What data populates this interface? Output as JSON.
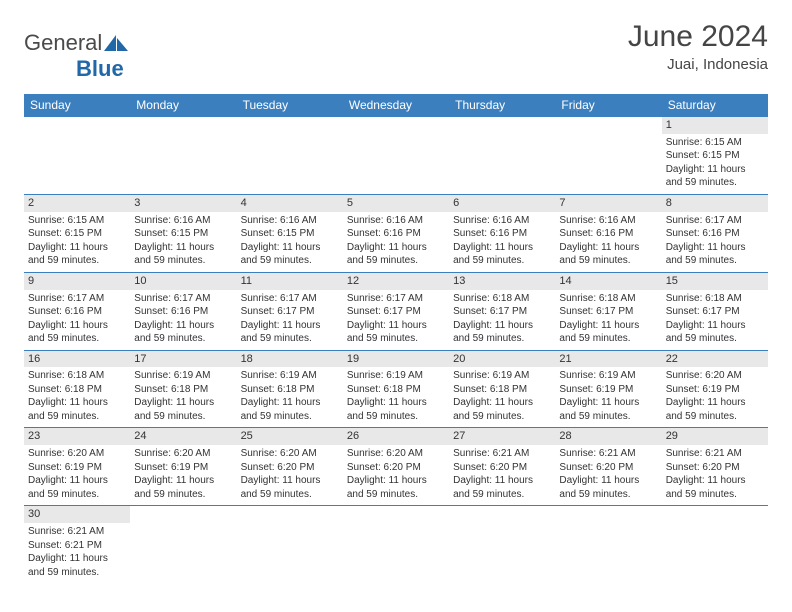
{
  "logo": {
    "text1": "General",
    "text2": "Blue"
  },
  "title": "June 2024",
  "location": "Juai, Indonesia",
  "colors": {
    "header_bg": "#3b7fbf",
    "header_fg": "#ffffff",
    "daynum_bg": "#e8e8e8",
    "border": "#3b7fbf",
    "text": "#333333",
    "title": "#454545"
  },
  "weekdays": [
    "Sunday",
    "Monday",
    "Tuesday",
    "Wednesday",
    "Thursday",
    "Friday",
    "Saturday"
  ],
  "weeks": [
    [
      null,
      null,
      null,
      null,
      null,
      null,
      {
        "n": "1",
        "sunrise": "Sunrise: 6:15 AM",
        "sunset": "Sunset: 6:15 PM",
        "daylight": "Daylight: 11 hours and 59 minutes."
      }
    ],
    [
      {
        "n": "2",
        "sunrise": "Sunrise: 6:15 AM",
        "sunset": "Sunset: 6:15 PM",
        "daylight": "Daylight: 11 hours and 59 minutes."
      },
      {
        "n": "3",
        "sunrise": "Sunrise: 6:16 AM",
        "sunset": "Sunset: 6:15 PM",
        "daylight": "Daylight: 11 hours and 59 minutes."
      },
      {
        "n": "4",
        "sunrise": "Sunrise: 6:16 AM",
        "sunset": "Sunset: 6:15 PM",
        "daylight": "Daylight: 11 hours and 59 minutes."
      },
      {
        "n": "5",
        "sunrise": "Sunrise: 6:16 AM",
        "sunset": "Sunset: 6:16 PM",
        "daylight": "Daylight: 11 hours and 59 minutes."
      },
      {
        "n": "6",
        "sunrise": "Sunrise: 6:16 AM",
        "sunset": "Sunset: 6:16 PM",
        "daylight": "Daylight: 11 hours and 59 minutes."
      },
      {
        "n": "7",
        "sunrise": "Sunrise: 6:16 AM",
        "sunset": "Sunset: 6:16 PM",
        "daylight": "Daylight: 11 hours and 59 minutes."
      },
      {
        "n": "8",
        "sunrise": "Sunrise: 6:17 AM",
        "sunset": "Sunset: 6:16 PM",
        "daylight": "Daylight: 11 hours and 59 minutes."
      }
    ],
    [
      {
        "n": "9",
        "sunrise": "Sunrise: 6:17 AM",
        "sunset": "Sunset: 6:16 PM",
        "daylight": "Daylight: 11 hours and 59 minutes."
      },
      {
        "n": "10",
        "sunrise": "Sunrise: 6:17 AM",
        "sunset": "Sunset: 6:16 PM",
        "daylight": "Daylight: 11 hours and 59 minutes."
      },
      {
        "n": "11",
        "sunrise": "Sunrise: 6:17 AM",
        "sunset": "Sunset: 6:17 PM",
        "daylight": "Daylight: 11 hours and 59 minutes."
      },
      {
        "n": "12",
        "sunrise": "Sunrise: 6:17 AM",
        "sunset": "Sunset: 6:17 PM",
        "daylight": "Daylight: 11 hours and 59 minutes."
      },
      {
        "n": "13",
        "sunrise": "Sunrise: 6:18 AM",
        "sunset": "Sunset: 6:17 PM",
        "daylight": "Daylight: 11 hours and 59 minutes."
      },
      {
        "n": "14",
        "sunrise": "Sunrise: 6:18 AM",
        "sunset": "Sunset: 6:17 PM",
        "daylight": "Daylight: 11 hours and 59 minutes."
      },
      {
        "n": "15",
        "sunrise": "Sunrise: 6:18 AM",
        "sunset": "Sunset: 6:17 PM",
        "daylight": "Daylight: 11 hours and 59 minutes."
      }
    ],
    [
      {
        "n": "16",
        "sunrise": "Sunrise: 6:18 AM",
        "sunset": "Sunset: 6:18 PM",
        "daylight": "Daylight: 11 hours and 59 minutes."
      },
      {
        "n": "17",
        "sunrise": "Sunrise: 6:19 AM",
        "sunset": "Sunset: 6:18 PM",
        "daylight": "Daylight: 11 hours and 59 minutes."
      },
      {
        "n": "18",
        "sunrise": "Sunrise: 6:19 AM",
        "sunset": "Sunset: 6:18 PM",
        "daylight": "Daylight: 11 hours and 59 minutes."
      },
      {
        "n": "19",
        "sunrise": "Sunrise: 6:19 AM",
        "sunset": "Sunset: 6:18 PM",
        "daylight": "Daylight: 11 hours and 59 minutes."
      },
      {
        "n": "20",
        "sunrise": "Sunrise: 6:19 AM",
        "sunset": "Sunset: 6:18 PM",
        "daylight": "Daylight: 11 hours and 59 minutes."
      },
      {
        "n": "21",
        "sunrise": "Sunrise: 6:19 AM",
        "sunset": "Sunset: 6:19 PM",
        "daylight": "Daylight: 11 hours and 59 minutes."
      },
      {
        "n": "22",
        "sunrise": "Sunrise: 6:20 AM",
        "sunset": "Sunset: 6:19 PM",
        "daylight": "Daylight: 11 hours and 59 minutes."
      }
    ],
    [
      {
        "n": "23",
        "sunrise": "Sunrise: 6:20 AM",
        "sunset": "Sunset: 6:19 PM",
        "daylight": "Daylight: 11 hours and 59 minutes."
      },
      {
        "n": "24",
        "sunrise": "Sunrise: 6:20 AM",
        "sunset": "Sunset: 6:19 PM",
        "daylight": "Daylight: 11 hours and 59 minutes."
      },
      {
        "n": "25",
        "sunrise": "Sunrise: 6:20 AM",
        "sunset": "Sunset: 6:20 PM",
        "daylight": "Daylight: 11 hours and 59 minutes."
      },
      {
        "n": "26",
        "sunrise": "Sunrise: 6:20 AM",
        "sunset": "Sunset: 6:20 PM",
        "daylight": "Daylight: 11 hours and 59 minutes."
      },
      {
        "n": "27",
        "sunrise": "Sunrise: 6:21 AM",
        "sunset": "Sunset: 6:20 PM",
        "daylight": "Daylight: 11 hours and 59 minutes."
      },
      {
        "n": "28",
        "sunrise": "Sunrise: 6:21 AM",
        "sunset": "Sunset: 6:20 PM",
        "daylight": "Daylight: 11 hours and 59 minutes."
      },
      {
        "n": "29",
        "sunrise": "Sunrise: 6:21 AM",
        "sunset": "Sunset: 6:20 PM",
        "daylight": "Daylight: 11 hours and 59 minutes."
      }
    ],
    [
      {
        "n": "30",
        "sunrise": "Sunrise: 6:21 AM",
        "sunset": "Sunset: 6:21 PM",
        "daylight": "Daylight: 11 hours and 59 minutes."
      },
      null,
      null,
      null,
      null,
      null,
      null
    ]
  ]
}
